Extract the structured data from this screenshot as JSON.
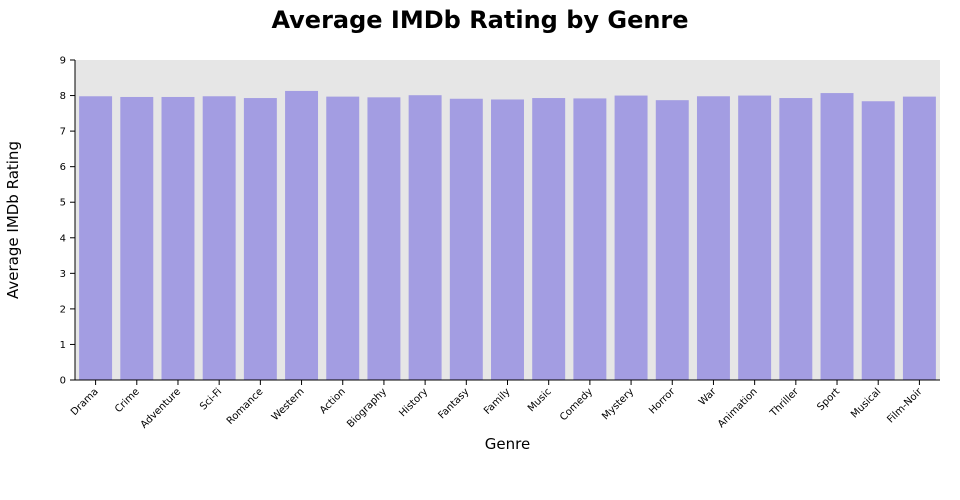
{
  "colors": {
    "bar": "#a39de2",
    "plot_background": "#e6e6e6",
    "axis": "#000000"
  },
  "chart_data": {
    "type": "bar",
    "title": "Average IMDb Rating by Genre",
    "xlabel": "Genre",
    "ylabel": "Average IMDb Rating",
    "ylim": [
      0,
      9
    ],
    "yticks": [
      0,
      1,
      2,
      3,
      4,
      5,
      6,
      7,
      8,
      9
    ],
    "grid": false,
    "categories": [
      "Drama",
      "Crime",
      "Adventure",
      "Sci-Fi",
      "Romance",
      "Western",
      "Action",
      "Biography",
      "History",
      "Fantasy",
      "Family",
      "Music",
      "Comedy",
      "Mystery",
      "Horror",
      "War",
      "Animation",
      "Thriller",
      "Sport",
      "Musical",
      "Film-Noir"
    ],
    "values": [
      7.98,
      7.96,
      7.96,
      7.98,
      7.93,
      8.13,
      7.97,
      7.95,
      8.01,
      7.91,
      7.89,
      7.93,
      7.92,
      8.0,
      7.87,
      7.98,
      8.0,
      7.93,
      8.07,
      7.84,
      7.97
    ]
  }
}
